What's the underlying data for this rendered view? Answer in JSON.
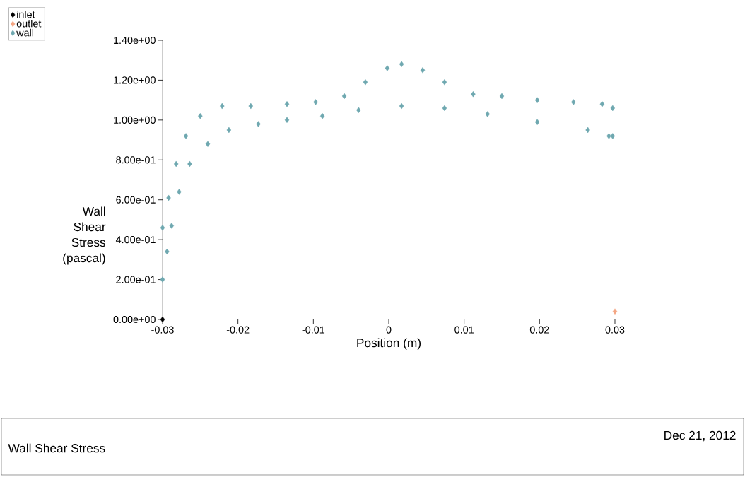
{
  "chart_data": {
    "type": "scatter",
    "title": "Wall Shear Stress",
    "xlabel": "Position (m)",
    "ylabel": "Wall Shear Stress (pascal)",
    "annotations": [
      "Dec 21, 2012"
    ],
    "xlim": [
      -0.03,
      0.03
    ],
    "ylim": [
      0,
      1.4
    ],
    "xticks": [
      {
        "value": -0.03,
        "label": "-0.03"
      },
      {
        "value": -0.02,
        "label": "-0.02"
      },
      {
        "value": -0.01,
        "label": "-0.01"
      },
      {
        "value": 0,
        "label": "0"
      },
      {
        "value": 0.01,
        "label": "0.01"
      },
      {
        "value": 0.02,
        "label": "0.02"
      },
      {
        "value": 0.03,
        "label": "0.03"
      }
    ],
    "yticks": [
      {
        "value": 0,
        "label": "0.00e+00"
      },
      {
        "value": 0.2,
        "label": "2.00e-01"
      },
      {
        "value": 0.4,
        "label": "4.00e-01"
      },
      {
        "value": 0.6,
        "label": "6.00e-01"
      },
      {
        "value": 0.8,
        "label": "8.00e-01"
      },
      {
        "value": 1.0,
        "label": "1.00e+00"
      },
      {
        "value": 1.2,
        "label": "1.20e+00"
      },
      {
        "value": 1.4,
        "label": "1.40e+00"
      }
    ],
    "grid": false,
    "legend": "top left",
    "marker": "diamond",
    "series": [
      {
        "name": "inlet",
        "color": "#000000",
        "x": [
          -0.03
        ],
        "values": [
          0
        ]
      },
      {
        "name": "outlet",
        "color": "#f4a582",
        "x": [
          0.03
        ],
        "values": [
          0.04
        ]
      },
      {
        "name": "wall",
        "color": "#6fa8b0",
        "x": [
          -0.03,
          -0.0292,
          -0.0282,
          -0.0269,
          -0.025,
          -0.0221,
          -0.0183,
          -0.0135,
          -0.0097,
          -0.0059,
          -0.0031,
          -0.0002,
          0.0017,
          0.0045,
          0.0074,
          0.0112,
          0.015,
          0.0197,
          0.0245,
          0.0283,
          0.0297,
          -0.03,
          -0.0294,
          -0.0288,
          -0.0278,
          -0.0264,
          -0.024,
          -0.0212,
          -0.0173,
          -0.0135,
          -0.0088,
          -0.004,
          0.0017,
          0.0074,
          0.0131,
          0.0197,
          0.0264,
          0.0292,
          0.0297
        ],
        "values": [
          0.46,
          0.61,
          0.78,
          0.92,
          1.02,
          1.07,
          1.07,
          1.08,
          1.09,
          1.12,
          1.19,
          1.26,
          1.28,
          1.25,
          1.19,
          1.13,
          1.12,
          1.1,
          1.09,
          1.08,
          1.06,
          0.2,
          0.34,
          0.47,
          0.64,
          0.78,
          0.88,
          0.95,
          0.98,
          1.0,
          1.02,
          1.05,
          1.07,
          1.06,
          1.03,
          0.99,
          0.95,
          0.92,
          0.92
        ]
      }
    ]
  }
}
